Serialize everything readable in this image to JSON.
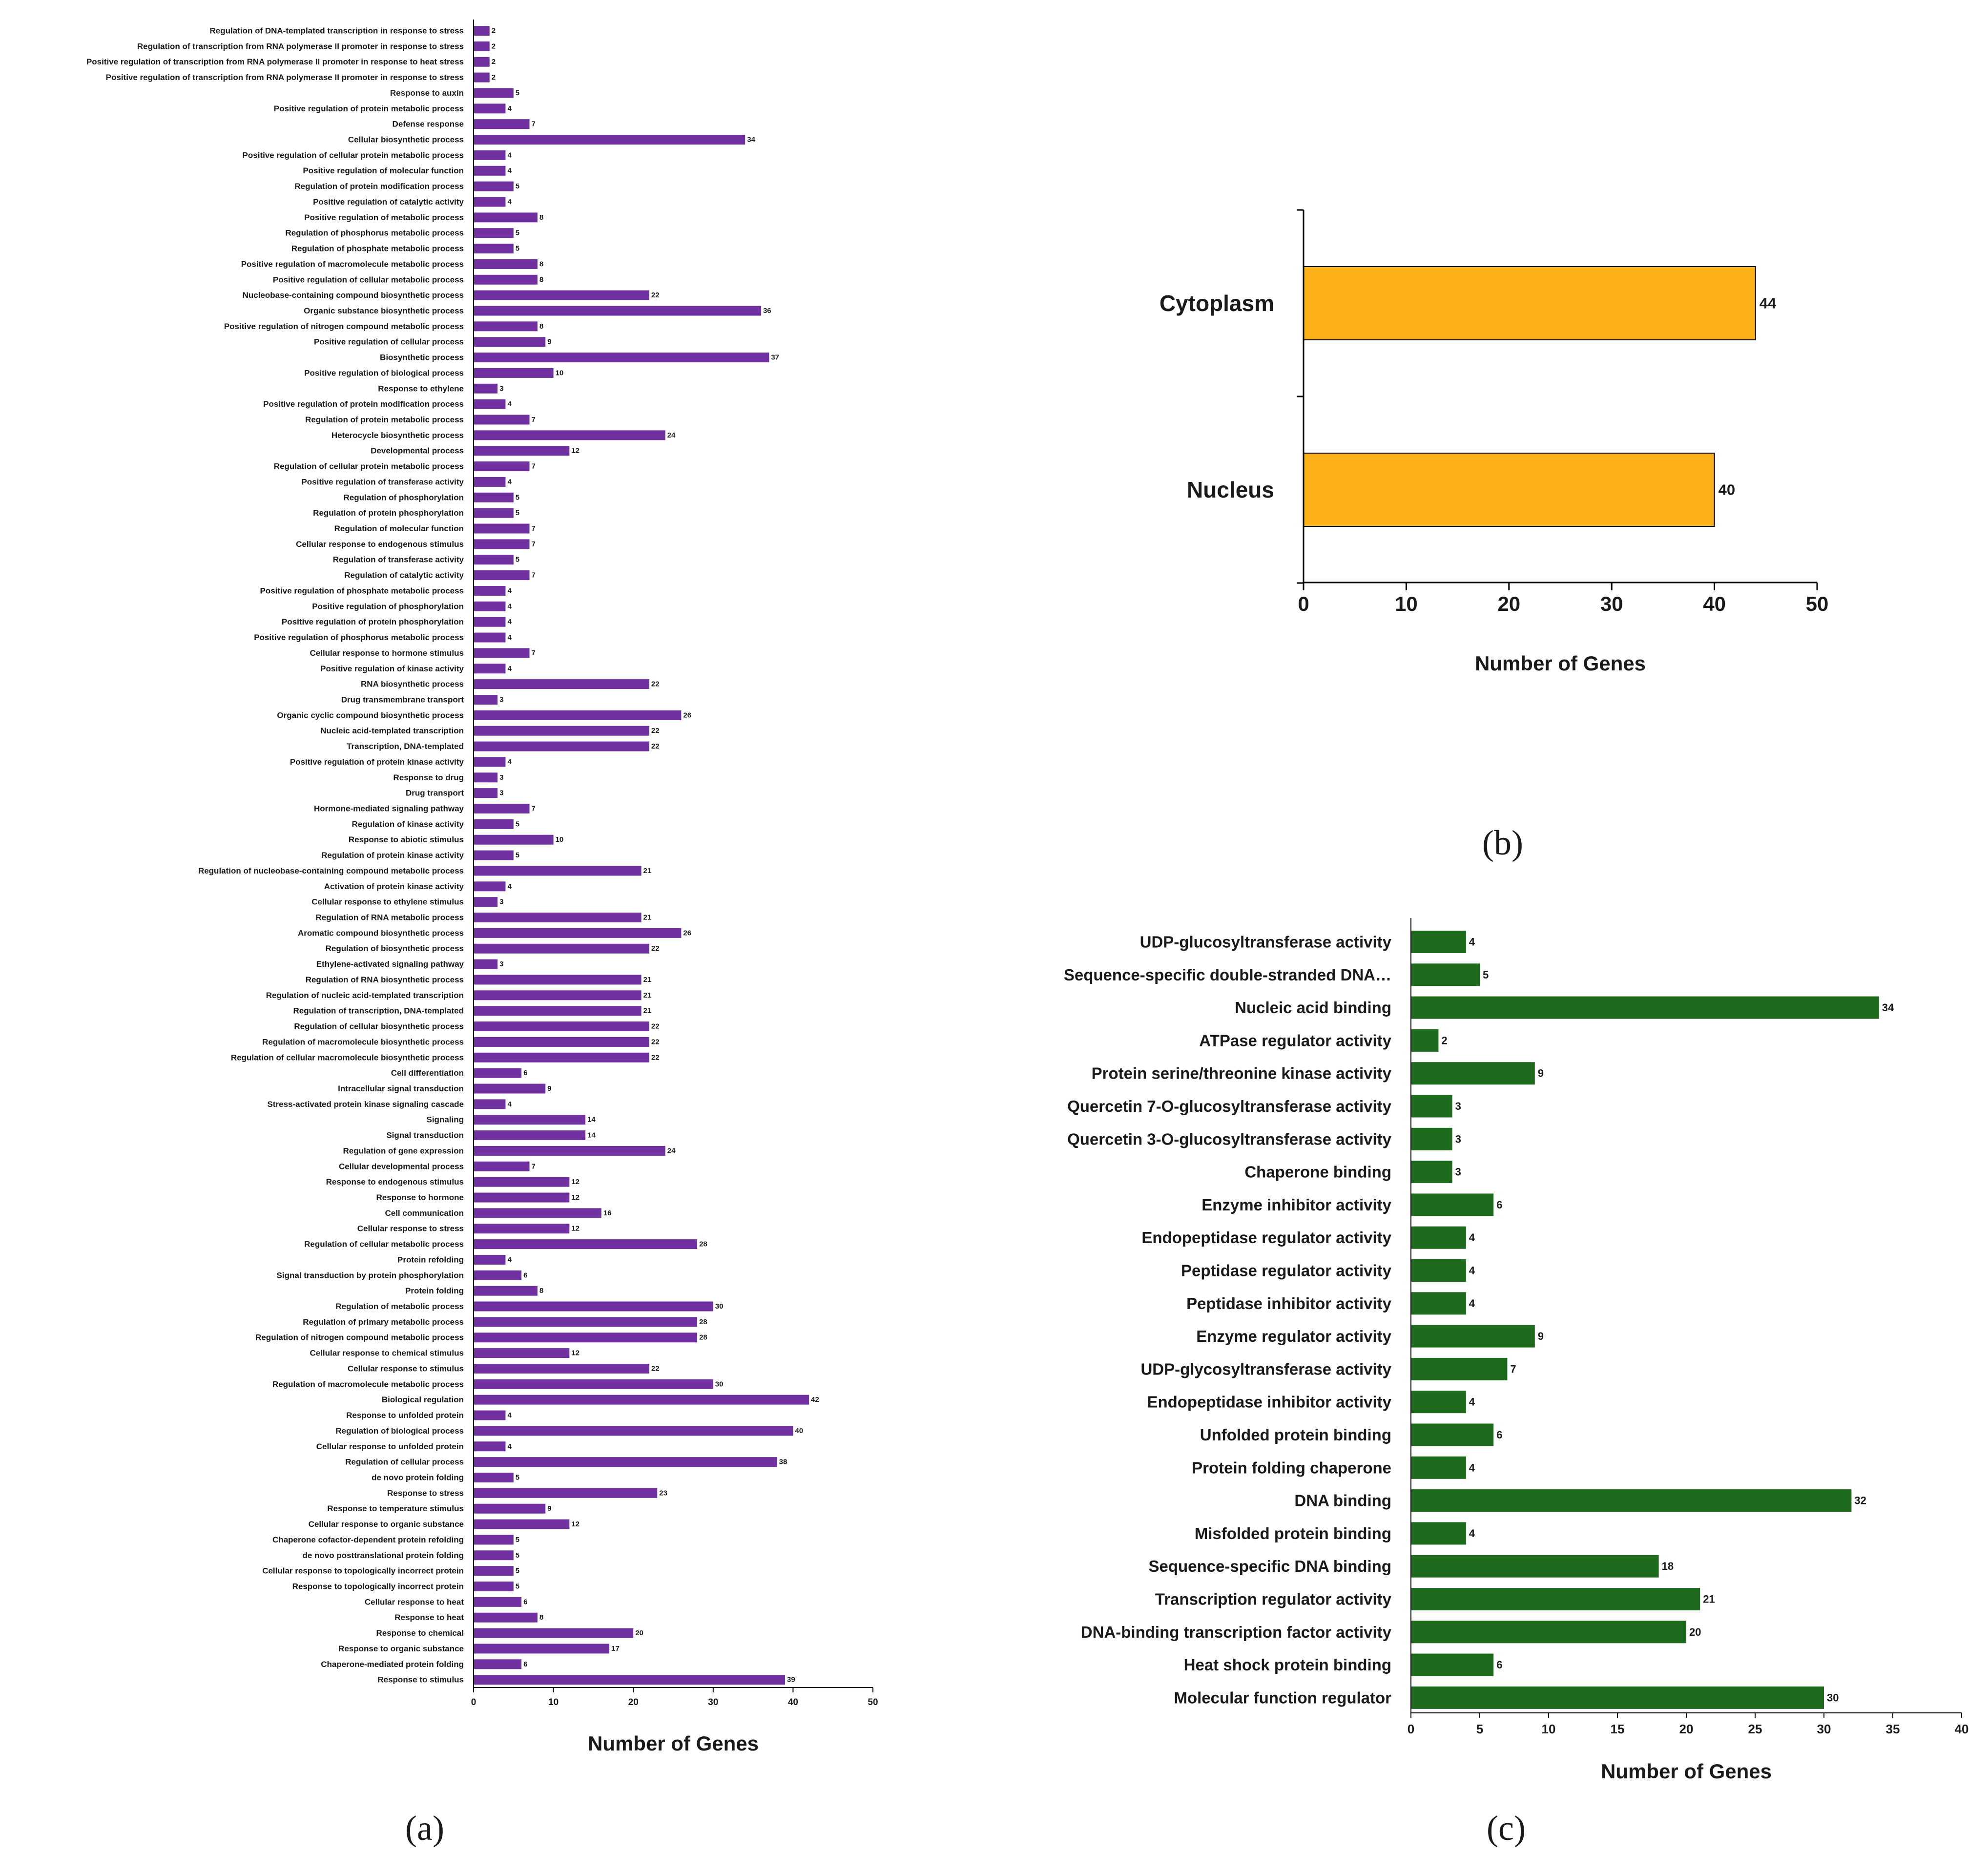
{
  "colors": {
    "panel_a_bar": "#7030a0",
    "panel_b_bar": "#fbb117",
    "panel_c_bar": "#1e6b1e",
    "axis": "#000000"
  },
  "chart_data": [
    {
      "type": "bar",
      "orientation": "horizontal",
      "panel_label": "(a)",
      "xlabel": "Number of Genes",
      "xlim": [
        0,
        50
      ],
      "xticks": [
        0,
        10,
        20,
        30,
        40,
        50
      ],
      "categories": [
        "Regulation of DNA-templated transcription in response to stress",
        "Regulation of transcription from RNA polymerase II promoter in response to stress",
        "Positive regulation of transcription from RNA polymerase II promoter in response to heat stress",
        "Positive regulation of transcription from RNA polymerase II promoter in response to stress",
        "Response to auxin",
        "Positive regulation of protein metabolic process",
        "Defense response",
        "Cellular biosynthetic process",
        "Positive regulation of cellular protein metabolic process",
        "Positive regulation of molecular function",
        "Regulation of protein modification process",
        "Positive regulation of catalytic activity",
        "Positive regulation of metabolic process",
        "Regulation of phosphorus metabolic process",
        "Regulation of phosphate metabolic process",
        "Positive regulation of macromolecule metabolic process",
        "Positive regulation of cellular metabolic process",
        "Nucleobase-containing compound biosynthetic process",
        "Organic substance biosynthetic process",
        "Positive regulation of nitrogen compound metabolic process",
        "Positive regulation of cellular process",
        "Biosynthetic process",
        "Positive regulation of biological process",
        "Response to ethylene",
        "Positive regulation of protein modification process",
        "Regulation of protein metabolic process",
        "Heterocycle biosynthetic process",
        "Developmental process",
        "Regulation of cellular protein metabolic process",
        "Positive regulation of transferase activity",
        "Regulation of phosphorylation",
        "Regulation of protein phosphorylation",
        "Regulation of molecular function",
        "Cellular response to endogenous stimulus",
        "Regulation of transferase activity",
        "Regulation of catalytic activity",
        "Positive regulation of phosphate metabolic process",
        "Positive regulation of phosphorylation",
        "Positive regulation of protein phosphorylation",
        "Positive regulation of phosphorus metabolic process",
        "Cellular response to hormone stimulus",
        "Positive regulation of kinase activity",
        "RNA biosynthetic process",
        "Drug transmembrane transport",
        "Organic cyclic compound biosynthetic process",
        "Nucleic acid-templated transcription",
        "Transcription, DNA-templated",
        "Positive regulation of protein kinase activity",
        "Response to drug",
        "Drug transport",
        "Hormone-mediated signaling pathway",
        "Regulation of kinase activity",
        "Response to abiotic stimulus",
        "Regulation of protein kinase activity",
        "Regulation of nucleobase-containing compound metabolic process",
        "Activation of protein kinase activity",
        "Cellular response to ethylene stimulus",
        "Regulation of RNA metabolic process",
        "Aromatic compound biosynthetic process",
        "Regulation of biosynthetic process",
        "Ethylene-activated signaling pathway",
        "Regulation of RNA biosynthetic process",
        "Regulation of nucleic acid-templated transcription",
        "Regulation of transcription, DNA-templated",
        "Regulation of cellular biosynthetic process",
        "Regulation of macromolecule biosynthetic process",
        "Regulation of cellular macromolecule biosynthetic process",
        "Cell differentiation",
        "Intracellular signal transduction",
        "Stress-activated protein kinase signaling cascade",
        "Signaling",
        "Signal transduction",
        "Regulation of gene expression",
        "Cellular developmental process",
        "Response to endogenous stimulus",
        "Response to hormone",
        "Cell communication",
        "Cellular response to stress",
        "Regulation of cellular metabolic process",
        "Protein refolding",
        "Signal transduction by protein phosphorylation",
        "Protein folding",
        "Regulation of metabolic process",
        "Regulation of primary metabolic process",
        "Regulation of nitrogen compound metabolic process",
        "Cellular response to chemical stimulus",
        "Cellular response to stimulus",
        "Regulation of macromolecule metabolic process",
        "Biological regulation",
        "Response to unfolded protein",
        "Regulation of biological process",
        "Cellular response to unfolded protein",
        "Regulation of cellular process",
        "de novo  protein folding",
        "Response to stress",
        "Response to temperature stimulus",
        "Cellular response to organic substance",
        "Chaperone cofactor-dependent protein refolding",
        "de novo  posttranslational protein folding",
        "Cellular response to topologically incorrect protein",
        "Response to topologically incorrect protein",
        "Cellular response to heat",
        "Response to heat",
        "Response to chemical",
        "Response to organic substance",
        "Chaperone-mediated protein folding",
        "Response to stimulus"
      ],
      "values": [
        2,
        2,
        2,
        2,
        5,
        4,
        7,
        34,
        4,
        4,
        5,
        4,
        8,
        5,
        5,
        8,
        8,
        22,
        36,
        8,
        9,
        37,
        10,
        3,
        4,
        7,
        24,
        12,
        7,
        4,
        5,
        5,
        7,
        7,
        5,
        7,
        4,
        4,
        4,
        4,
        7,
        4,
        22,
        3,
        26,
        22,
        22,
        4,
        3,
        3,
        7,
        5,
        10,
        5,
        21,
        4,
        3,
        21,
        26,
        22,
        3,
        21,
        21,
        21,
        22,
        22,
        22,
        6,
        9,
        4,
        14,
        14,
        24,
        7,
        12,
        12,
        16,
        12,
        28,
        4,
        6,
        8,
        30,
        28,
        28,
        12,
        22,
        30,
        42,
        4,
        40,
        4,
        38,
        5,
        23,
        9,
        12,
        5,
        5,
        5,
        5,
        6,
        8,
        20,
        17,
        6,
        39
      ]
    },
    {
      "type": "bar",
      "orientation": "horizontal",
      "panel_label": "(b)",
      "xlabel": "Number of Genes",
      "xlim": [
        0,
        50
      ],
      "xticks": [
        0,
        10,
        20,
        30,
        40,
        50
      ],
      "categories": [
        "Cytoplasm",
        "Nucleus"
      ],
      "values": [
        44,
        40
      ]
    },
    {
      "type": "bar",
      "orientation": "horizontal",
      "panel_label": "(c)",
      "xlabel": "Number of Genes",
      "xlim": [
        0,
        40
      ],
      "xticks": [
        0,
        5,
        10,
        15,
        20,
        25,
        30,
        35,
        40
      ],
      "categories": [
        "UDP-glucosyltransferase activity",
        "Sequence-specific double-stranded DNA…",
        "Nucleic acid binding",
        "ATPase regulator activity",
        "Protein serine/threonine kinase activity",
        "Quercetin 7-O-glucosyltransferase activity",
        "Quercetin 3-O-glucosyltransferase activity",
        "Chaperone binding",
        "Enzyme inhibitor activity",
        "Endopeptidase regulator activity",
        "Peptidase regulator activity",
        "Peptidase inhibitor activity",
        "Enzyme regulator activity",
        "UDP-glycosyltransferase activity",
        "Endopeptidase inhibitor activity",
        "Unfolded protein binding",
        "Protein folding chaperone",
        "DNA binding",
        "Misfolded protein binding",
        "Sequence-specific DNA binding",
        "Transcription regulator activity",
        "DNA-binding transcription factor activity",
        "Heat shock protein binding",
        "Molecular function regulator"
      ],
      "values": [
        4,
        5,
        34,
        2,
        9,
        3,
        3,
        3,
        6,
        4,
        4,
        4,
        9,
        7,
        4,
        6,
        4,
        32,
        4,
        18,
        21,
        20,
        6,
        30
      ]
    }
  ]
}
